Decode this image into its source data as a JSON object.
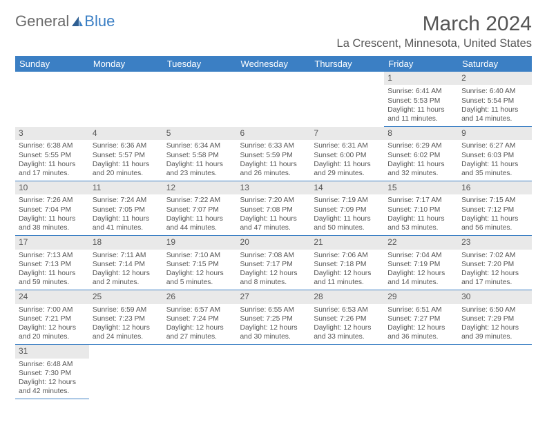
{
  "logo": {
    "text1": "General",
    "text2": "Blue"
  },
  "title": "March 2024",
  "location": "La Crescent, Minnesota, United States",
  "colors": {
    "accent": "#3b7fc4",
    "header_bg": "#3b7fc4",
    "daynum_bg": "#e9e9e9",
    "text": "#555555",
    "bg": "#ffffff"
  },
  "day_headers": [
    "Sunday",
    "Monday",
    "Tuesday",
    "Wednesday",
    "Thursday",
    "Friday",
    "Saturday"
  ],
  "weeks": [
    [
      null,
      null,
      null,
      null,
      null,
      {
        "n": "1",
        "sr": "6:41 AM",
        "ss": "5:53 PM",
        "dl": "11 hours and 11 minutes."
      },
      {
        "n": "2",
        "sr": "6:40 AM",
        "ss": "5:54 PM",
        "dl": "11 hours and 14 minutes."
      }
    ],
    [
      {
        "n": "3",
        "sr": "6:38 AM",
        "ss": "5:55 PM",
        "dl": "11 hours and 17 minutes."
      },
      {
        "n": "4",
        "sr": "6:36 AM",
        "ss": "5:57 PM",
        "dl": "11 hours and 20 minutes."
      },
      {
        "n": "5",
        "sr": "6:34 AM",
        "ss": "5:58 PM",
        "dl": "11 hours and 23 minutes."
      },
      {
        "n": "6",
        "sr": "6:33 AM",
        "ss": "5:59 PM",
        "dl": "11 hours and 26 minutes."
      },
      {
        "n": "7",
        "sr": "6:31 AM",
        "ss": "6:00 PM",
        "dl": "11 hours and 29 minutes."
      },
      {
        "n": "8",
        "sr": "6:29 AM",
        "ss": "6:02 PM",
        "dl": "11 hours and 32 minutes."
      },
      {
        "n": "9",
        "sr": "6:27 AM",
        "ss": "6:03 PM",
        "dl": "11 hours and 35 minutes."
      }
    ],
    [
      {
        "n": "10",
        "sr": "7:26 AM",
        "ss": "7:04 PM",
        "dl": "11 hours and 38 minutes."
      },
      {
        "n": "11",
        "sr": "7:24 AM",
        "ss": "7:05 PM",
        "dl": "11 hours and 41 minutes."
      },
      {
        "n": "12",
        "sr": "7:22 AM",
        "ss": "7:07 PM",
        "dl": "11 hours and 44 minutes."
      },
      {
        "n": "13",
        "sr": "7:20 AM",
        "ss": "7:08 PM",
        "dl": "11 hours and 47 minutes."
      },
      {
        "n": "14",
        "sr": "7:19 AM",
        "ss": "7:09 PM",
        "dl": "11 hours and 50 minutes."
      },
      {
        "n": "15",
        "sr": "7:17 AM",
        "ss": "7:10 PM",
        "dl": "11 hours and 53 minutes."
      },
      {
        "n": "16",
        "sr": "7:15 AM",
        "ss": "7:12 PM",
        "dl": "11 hours and 56 minutes."
      }
    ],
    [
      {
        "n": "17",
        "sr": "7:13 AM",
        "ss": "7:13 PM",
        "dl": "11 hours and 59 minutes."
      },
      {
        "n": "18",
        "sr": "7:11 AM",
        "ss": "7:14 PM",
        "dl": "12 hours and 2 minutes."
      },
      {
        "n": "19",
        "sr": "7:10 AM",
        "ss": "7:15 PM",
        "dl": "12 hours and 5 minutes."
      },
      {
        "n": "20",
        "sr": "7:08 AM",
        "ss": "7:17 PM",
        "dl": "12 hours and 8 minutes."
      },
      {
        "n": "21",
        "sr": "7:06 AM",
        "ss": "7:18 PM",
        "dl": "12 hours and 11 minutes."
      },
      {
        "n": "22",
        "sr": "7:04 AM",
        "ss": "7:19 PM",
        "dl": "12 hours and 14 minutes."
      },
      {
        "n": "23",
        "sr": "7:02 AM",
        "ss": "7:20 PM",
        "dl": "12 hours and 17 minutes."
      }
    ],
    [
      {
        "n": "24",
        "sr": "7:00 AM",
        "ss": "7:21 PM",
        "dl": "12 hours and 20 minutes."
      },
      {
        "n": "25",
        "sr": "6:59 AM",
        "ss": "7:23 PM",
        "dl": "12 hours and 24 minutes."
      },
      {
        "n": "26",
        "sr": "6:57 AM",
        "ss": "7:24 PM",
        "dl": "12 hours and 27 minutes."
      },
      {
        "n": "27",
        "sr": "6:55 AM",
        "ss": "7:25 PM",
        "dl": "12 hours and 30 minutes."
      },
      {
        "n": "28",
        "sr": "6:53 AM",
        "ss": "7:26 PM",
        "dl": "12 hours and 33 minutes."
      },
      {
        "n": "29",
        "sr": "6:51 AM",
        "ss": "7:27 PM",
        "dl": "12 hours and 36 minutes."
      },
      {
        "n": "30",
        "sr": "6:50 AM",
        "ss": "7:29 PM",
        "dl": "12 hours and 39 minutes."
      }
    ],
    [
      {
        "n": "31",
        "sr": "6:48 AM",
        "ss": "7:30 PM",
        "dl": "12 hours and 42 minutes."
      },
      null,
      null,
      null,
      null,
      null,
      null
    ]
  ],
  "labels": {
    "sunrise": "Sunrise:",
    "sunset": "Sunset:",
    "daylight": "Daylight:"
  }
}
